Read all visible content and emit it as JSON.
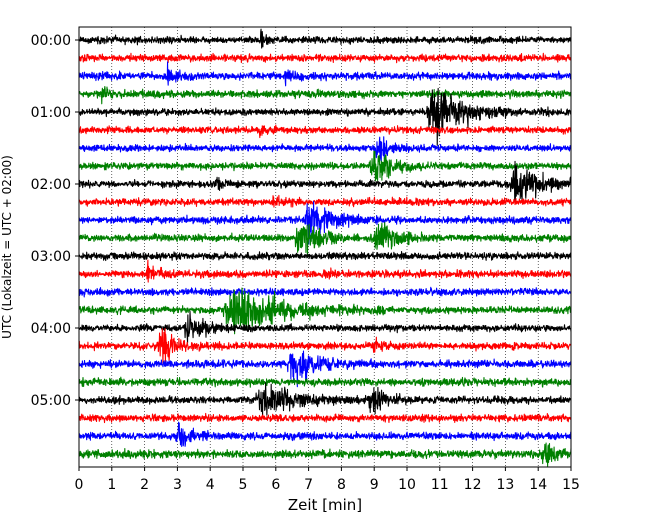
{
  "chart_data": {
    "type": "line",
    "subtype": "helicorder",
    "title": "",
    "xlabel": "Zeit  [min]",
    "ylabel": "UTC (Lokalzeit = UTC + 02:00)",
    "xlim": [
      0,
      15
    ],
    "x_ticks": [
      "0",
      "1",
      "2",
      "3",
      "4",
      "5",
      "6",
      "7",
      "8",
      "9",
      "10",
      "11",
      "12",
      "13",
      "14",
      "15"
    ],
    "y_ticks": [
      {
        "row": 0,
        "label": "00:00"
      },
      {
        "row": 4,
        "label": "01:00"
      },
      {
        "row": 8,
        "label": "02:00"
      },
      {
        "row": 12,
        "label": "03:00"
      },
      {
        "row": 16,
        "label": "04:00"
      },
      {
        "row": 20,
        "label": "05:00"
      }
    ],
    "grid": "vertical-dotted",
    "row_minutes": 15,
    "row_count": 24,
    "color_cycle": [
      "#000000",
      "#ff0000",
      "#0000ff",
      "#008000"
    ],
    "base_noise": [
      0.25,
      0.26,
      0.27,
      0.27,
      0.24,
      0.24,
      0.24,
      0.24,
      0.24,
      0.26,
      0.26,
      0.26,
      0.26,
      0.26,
      0.26,
      0.26,
      0.24,
      0.26,
      0.27,
      0.27,
      0.26,
      0.26,
      0.27,
      0.29
    ],
    "events": [
      {
        "row": 0,
        "minute": 5.55,
        "amp": 0.7,
        "dur": 0.12
      },
      {
        "row": 2,
        "minute": 2.7,
        "amp": 0.55,
        "dur": 0.3
      },
      {
        "row": 2,
        "minute": 6.3,
        "amp": 0.4,
        "dur": 0.25
      },
      {
        "row": 3,
        "minute": 0.7,
        "amp": 0.6,
        "dur": 0.15
      },
      {
        "row": 4,
        "minute": 10.8,
        "amp": 2.2,
        "dur": 0.8
      },
      {
        "row": 5,
        "minute": 5.5,
        "amp": 0.5,
        "dur": 0.15
      },
      {
        "row": 6,
        "minute": 9.1,
        "amp": 1.2,
        "dur": 0.3
      },
      {
        "row": 7,
        "minute": 9.0,
        "amp": 1.6,
        "dur": 0.5
      },
      {
        "row": 8,
        "minute": 4.2,
        "amp": 0.6,
        "dur": 0.15
      },
      {
        "row": 8,
        "minute": 13.3,
        "amp": 2.0,
        "dur": 0.6
      },
      {
        "row": 9,
        "minute": 5.9,
        "amp": 0.5,
        "dur": 0.2
      },
      {
        "row": 10,
        "minute": 7.0,
        "amp": 1.8,
        "dur": 0.6
      },
      {
        "row": 11,
        "minute": 6.7,
        "amp": 1.6,
        "dur": 0.5
      },
      {
        "row": 11,
        "minute": 9.1,
        "amp": 1.3,
        "dur": 0.5
      },
      {
        "row": 13,
        "minute": 2.1,
        "amp": 0.6,
        "dur": 0.3
      },
      {
        "row": 13,
        "minute": 7.5,
        "amp": 0.5,
        "dur": 0.2
      },
      {
        "row": 15,
        "minute": 4.7,
        "amp": 2.0,
        "dur": 1.2
      },
      {
        "row": 16,
        "minute": 3.3,
        "amp": 1.2,
        "dur": 0.4
      },
      {
        "row": 17,
        "minute": 2.5,
        "amp": 1.5,
        "dur": 0.4
      },
      {
        "row": 17,
        "minute": 9.0,
        "amp": 0.6,
        "dur": 0.2
      },
      {
        "row": 18,
        "minute": 6.5,
        "amp": 1.4,
        "dur": 0.6
      },
      {
        "row": 20,
        "minute": 5.6,
        "amp": 1.2,
        "dur": 0.8
      },
      {
        "row": 20,
        "minute": 8.9,
        "amp": 1.1,
        "dur": 0.4
      },
      {
        "row": 22,
        "minute": 3.0,
        "amp": 0.8,
        "dur": 0.4
      },
      {
        "row": 23,
        "minute": 14.2,
        "amp": 0.7,
        "dur": 0.4
      }
    ]
  }
}
